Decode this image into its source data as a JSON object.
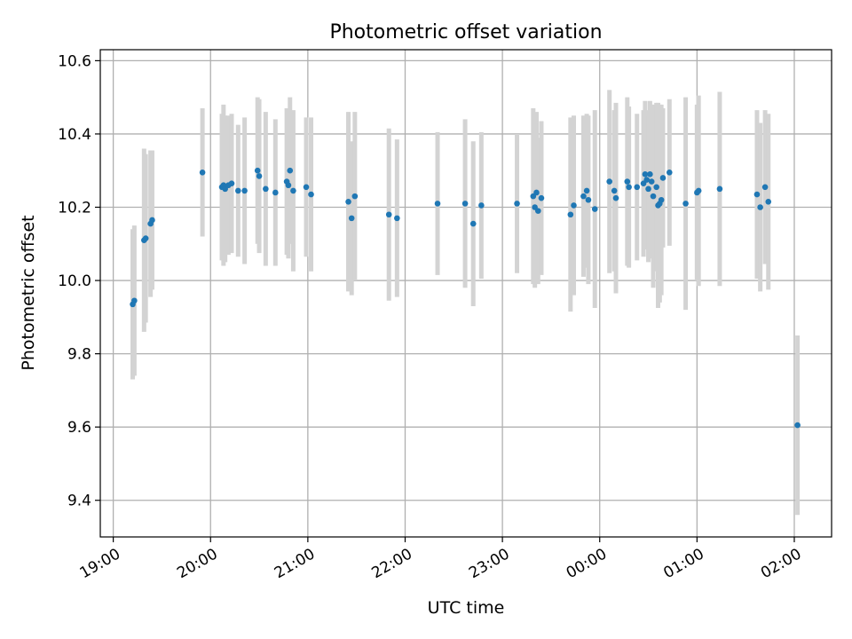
{
  "chart_data": {
    "type": "scatter",
    "title": "Photometric offset variation",
    "xlabel": "UTC time",
    "ylabel": "Photometric offset",
    "x_ticks": [
      "19:00",
      "20:00",
      "21:00",
      "22:00",
      "23:00",
      "00:00",
      "01:00",
      "02:00"
    ],
    "x_tick_hours": [
      0,
      1,
      2,
      3,
      4,
      5,
      6,
      7
    ],
    "x_origin": "19:00",
    "xlim": [
      "18:52",
      "02:23"
    ],
    "y_ticks": [
      "9.4",
      "9.6",
      "9.8",
      "10.0",
      "10.2",
      "10.4",
      "10.6"
    ],
    "ylim": [
      9.3,
      10.63
    ],
    "grid": true,
    "colors": {
      "marker": "#1f77b4",
      "errorbar": "#d3d3d3",
      "grid": "#b0b0b0"
    },
    "series": [
      {
        "points": [
          {
            "t": "19:12",
            "y": 9.935,
            "e": 0.205
          },
          {
            "t": "19:13",
            "y": 9.945,
            "e": 0.205
          },
          {
            "t": "19:19",
            "y": 10.11,
            "e": 0.25
          },
          {
            "t": "19:20",
            "y": 10.115,
            "e": 0.23
          },
          {
            "t": "19:23",
            "y": 10.155,
            "e": 0.2
          },
          {
            "t": "19:24",
            "y": 10.165,
            "e": 0.19
          },
          {
            "t": "19:55",
            "y": 10.295,
            "e": 0.175
          },
          {
            "t": "20:07",
            "y": 10.255,
            "e": 0.2
          },
          {
            "t": "20:08",
            "y": 10.26,
            "e": 0.22
          },
          {
            "t": "20:09",
            "y": 10.25,
            "e": 0.2
          },
          {
            "t": "20:11",
            "y": 10.26,
            "e": 0.19
          },
          {
            "t": "20:13",
            "y": 10.265,
            "e": 0.19
          },
          {
            "t": "20:17",
            "y": 10.245,
            "e": 0.18
          },
          {
            "t": "20:21",
            "y": 10.245,
            "e": 0.2
          },
          {
            "t": "20:29",
            "y": 10.3,
            "e": 0.2
          },
          {
            "t": "20:30",
            "y": 10.285,
            "e": 0.21
          },
          {
            "t": "20:34",
            "y": 10.25,
            "e": 0.21
          },
          {
            "t": "20:40",
            "y": 10.24,
            "e": 0.2
          },
          {
            "t": "20:47",
            "y": 10.27,
            "e": 0.2
          },
          {
            "t": "20:48",
            "y": 10.26,
            "e": 0.2
          },
          {
            "t": "20:49",
            "y": 10.3,
            "e": 0.2
          },
          {
            "t": "20:51",
            "y": 10.245,
            "e": 0.22
          },
          {
            "t": "20:59",
            "y": 10.255,
            "e": 0.19
          },
          {
            "t": "21:02",
            "y": 10.235,
            "e": 0.21
          },
          {
            "t": "21:25",
            "y": 10.215,
            "e": 0.245
          },
          {
            "t": "21:27",
            "y": 10.17,
            "e": 0.21
          },
          {
            "t": "21:29",
            "y": 10.23,
            "e": 0.23
          },
          {
            "t": "21:50",
            "y": 10.18,
            "e": 0.235
          },
          {
            "t": "21:55",
            "y": 10.17,
            "e": 0.215
          },
          {
            "t": "22:20",
            "y": 10.21,
            "e": 0.195
          },
          {
            "t": "22:37",
            "y": 10.21,
            "e": 0.23
          },
          {
            "t": "22:42",
            "y": 10.155,
            "e": 0.225
          },
          {
            "t": "22:47",
            "y": 10.205,
            "e": 0.2
          },
          {
            "t": "23:09",
            "y": 10.21,
            "e": 0.19
          },
          {
            "t": "23:19",
            "y": 10.23,
            "e": 0.24
          },
          {
            "t": "23:20",
            "y": 10.2,
            "e": 0.22
          },
          {
            "t": "23:21",
            "y": 10.24,
            "e": 0.22
          },
          {
            "t": "23:22",
            "y": 10.19,
            "e": 0.2
          },
          {
            "t": "23:24",
            "y": 10.225,
            "e": 0.21
          },
          {
            "t": "23:42",
            "y": 10.18,
            "e": 0.265
          },
          {
            "t": "23:44",
            "y": 10.205,
            "e": 0.245
          },
          {
            "t": "23:50",
            "y": 10.23,
            "e": 0.22
          },
          {
            "t": "23:52",
            "y": 10.245,
            "e": 0.21
          },
          {
            "t": "23:53",
            "y": 10.22,
            "e": 0.23
          },
          {
            "t": "23:57",
            "y": 10.195,
            "e": 0.27
          },
          {
            "t": "00:06",
            "y": 10.27,
            "e": 0.25
          },
          {
            "t": "00:09",
            "y": 10.245,
            "e": 0.22
          },
          {
            "t": "00:10",
            "y": 10.225,
            "e": 0.26
          },
          {
            "t": "00:17",
            "y": 10.27,
            "e": 0.23
          },
          {
            "t": "00:18",
            "y": 10.255,
            "e": 0.22
          },
          {
            "t": "00:23",
            "y": 10.255,
            "e": 0.2
          },
          {
            "t": "00:27",
            "y": 10.265,
            "e": 0.2
          },
          {
            "t": "00:28",
            "y": 10.29,
            "e": 0.2
          },
          {
            "t": "00:29",
            "y": 10.275,
            "e": 0.19
          },
          {
            "t": "00:30",
            "y": 10.25,
            "e": 0.2
          },
          {
            "t": "00:31",
            "y": 10.29,
            "e": 0.2
          },
          {
            "t": "00:32",
            "y": 10.27,
            "e": 0.21
          },
          {
            "t": "00:33",
            "y": 10.23,
            "e": 0.25
          },
          {
            "t": "00:35",
            "y": 10.255,
            "e": 0.23
          },
          {
            "t": "00:36",
            "y": 10.205,
            "e": 0.28
          },
          {
            "t": "00:37",
            "y": 10.21,
            "e": 0.27
          },
          {
            "t": "00:38",
            "y": 10.22,
            "e": 0.26
          },
          {
            "t": "00:39",
            "y": 10.28,
            "e": 0.19
          },
          {
            "t": "00:43",
            "y": 10.295,
            "e": 0.2
          },
          {
            "t": "00:53",
            "y": 10.21,
            "e": 0.29
          },
          {
            "t": "01:00",
            "y": 10.24,
            "e": 0.24
          },
          {
            "t": "01:01",
            "y": 10.245,
            "e": 0.26
          },
          {
            "t": "01:14",
            "y": 10.25,
            "e": 0.265
          },
          {
            "t": "01:37",
            "y": 10.235,
            "e": 0.23
          },
          {
            "t": "01:39",
            "y": 10.2,
            "e": 0.23
          },
          {
            "t": "01:42",
            "y": 10.255,
            "e": 0.21
          },
          {
            "t": "01:44",
            "y": 10.215,
            "e": 0.24
          },
          {
            "t": "02:02",
            "y": 9.605,
            "e": 0.245
          }
        ]
      }
    ]
  }
}
